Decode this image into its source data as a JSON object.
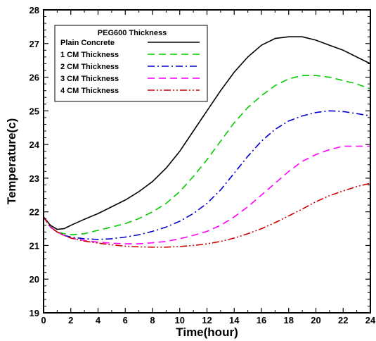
{
  "chart_data": {
    "type": "line",
    "xlabel": "Time(hour)",
    "ylabel": "Temperature(c)",
    "xlim": [
      0,
      24
    ],
    "ylim": [
      19,
      28
    ],
    "xticks": [
      0,
      2,
      4,
      6,
      8,
      10,
      12,
      14,
      16,
      18,
      20,
      22,
      24
    ],
    "yticks": [
      19,
      20,
      21,
      22,
      23,
      24,
      25,
      26,
      27,
      28
    ],
    "grid": false,
    "legend": {
      "title": "PEG600 Thickness",
      "placement": "top-left"
    },
    "series": [
      {
        "name": "Plain Concrete",
        "color": "#000000",
        "dash": "solid",
        "x": [
          0,
          0.5,
          1,
          1.5,
          2,
          3,
          4,
          5,
          6,
          7,
          8,
          9,
          10,
          11,
          12,
          13,
          14,
          15,
          16,
          17,
          18,
          19,
          20,
          21,
          22,
          23,
          24
        ],
        "y": [
          21.85,
          21.6,
          21.48,
          21.5,
          21.6,
          21.78,
          21.95,
          22.15,
          22.35,
          22.6,
          22.9,
          23.3,
          23.8,
          24.4,
          25.0,
          25.6,
          26.15,
          26.6,
          26.95,
          27.15,
          27.2,
          27.2,
          27.1,
          26.95,
          26.8,
          26.6,
          26.4
        ]
      },
      {
        "name": "1 CM Thickness",
        "color": "#00cc00",
        "dash": "long-dash",
        "x": [
          0,
          0.5,
          1,
          1.5,
          2,
          3,
          4,
          5,
          6,
          7,
          8,
          9,
          10,
          11,
          12,
          13,
          14,
          15,
          16,
          17,
          18,
          19,
          20,
          21,
          22,
          23,
          24
        ],
        "y": [
          21.85,
          21.55,
          21.4,
          21.35,
          21.32,
          21.35,
          21.45,
          21.55,
          21.65,
          21.8,
          22.0,
          22.25,
          22.6,
          23.05,
          23.55,
          24.1,
          24.65,
          25.1,
          25.45,
          25.75,
          25.95,
          26.05,
          26.05,
          26.0,
          25.9,
          25.8,
          25.65
        ]
      },
      {
        "name": "2 CM Thickness",
        "color": "#0000cc",
        "dash": "dash-dot",
        "x": [
          0,
          0.5,
          1,
          1.5,
          2,
          3,
          4,
          5,
          6,
          7,
          8,
          9,
          10,
          11,
          12,
          13,
          14,
          15,
          16,
          17,
          18,
          19,
          20,
          21,
          22,
          23,
          24
        ],
        "y": [
          21.85,
          21.55,
          21.4,
          21.3,
          21.25,
          21.2,
          21.18,
          21.2,
          21.25,
          21.32,
          21.42,
          21.55,
          21.72,
          21.95,
          22.25,
          22.65,
          23.15,
          23.65,
          24.1,
          24.45,
          24.7,
          24.85,
          24.95,
          25.0,
          24.98,
          24.92,
          24.85
        ]
      },
      {
        "name": "3 CM Thickness",
        "color": "#ff00ff",
        "dash": "long-dash",
        "x": [
          0,
          0.5,
          1,
          1.5,
          2,
          3,
          4,
          5,
          6,
          7,
          8,
          9,
          10,
          11,
          12,
          13,
          14,
          15,
          16,
          17,
          18,
          19,
          20,
          21,
          22,
          23,
          24
        ],
        "y": [
          21.85,
          21.55,
          21.4,
          21.3,
          21.22,
          21.15,
          21.1,
          21.07,
          21.05,
          21.05,
          21.08,
          21.12,
          21.2,
          21.3,
          21.42,
          21.6,
          21.85,
          22.15,
          22.5,
          22.85,
          23.2,
          23.5,
          23.7,
          23.85,
          23.95,
          23.95,
          23.95
        ]
      },
      {
        "name": "4 CM Thickness",
        "color": "#cc0000",
        "dash": "dash-dot-dot",
        "x": [
          0,
          0.5,
          1,
          1.5,
          2,
          3,
          4,
          5,
          6,
          7,
          8,
          9,
          10,
          11,
          12,
          13,
          14,
          15,
          16,
          17,
          18,
          19,
          20,
          21,
          22,
          23,
          24
        ],
        "y": [
          21.85,
          21.55,
          21.4,
          21.3,
          21.22,
          21.13,
          21.07,
          21.02,
          20.98,
          20.96,
          20.95,
          20.95,
          20.97,
          21.0,
          21.05,
          21.12,
          21.22,
          21.35,
          21.5,
          21.68,
          21.88,
          22.08,
          22.3,
          22.48,
          22.62,
          22.75,
          22.85
        ]
      }
    ]
  }
}
